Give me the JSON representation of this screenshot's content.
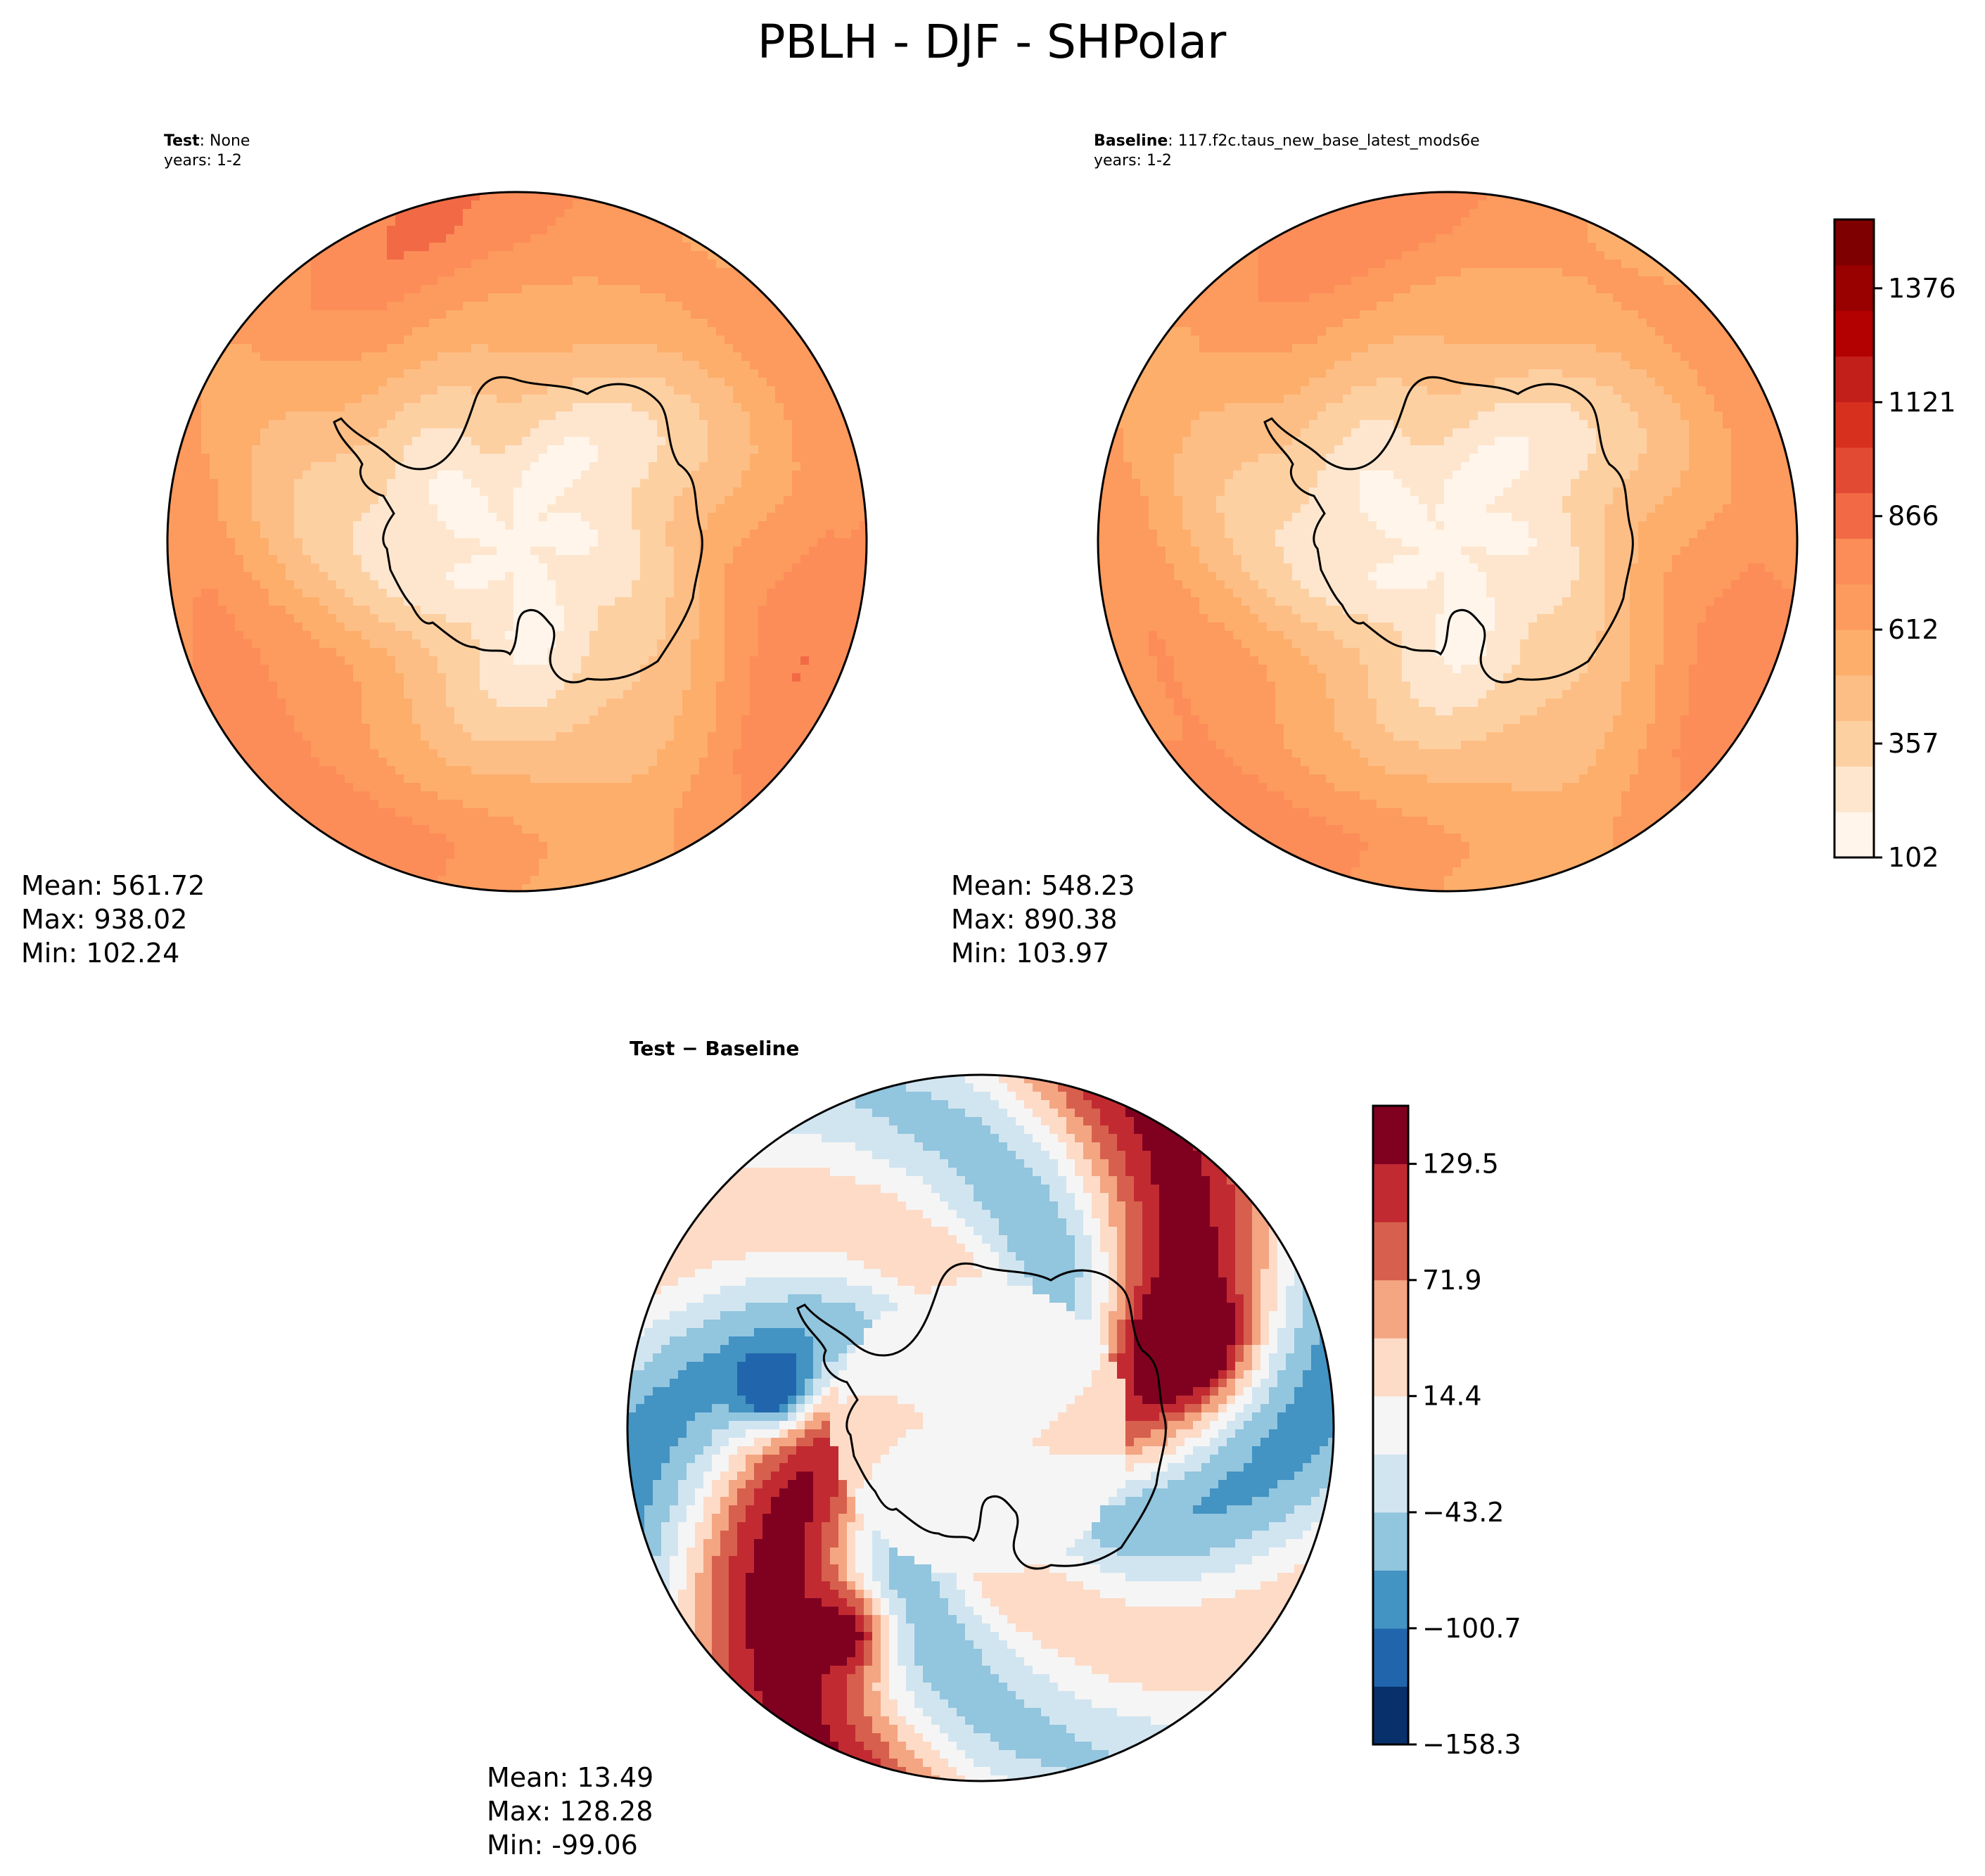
{
  "figure": {
    "title": "PBLH - DJF - SHPolar"
  },
  "chart_data": [
    {
      "type": "heatmap",
      "name": "test-map",
      "projection": "south-polar-stereographic",
      "label_bold": "Test",
      "label_rest": ": None",
      "years": "years: 1-2",
      "stats": {
        "mean": "Mean: 561.72",
        "max": "Max: 938.02",
        "min": "Min: 102.24"
      },
      "field": {
        "pole": 170,
        "coast": 320,
        "ocean_ring": 700,
        "ring_variation": 90,
        "max": 938.02,
        "min": 102.24
      },
      "colorbar": "shared",
      "cmap": "reds"
    },
    {
      "type": "heatmap",
      "name": "baseline-map",
      "projection": "south-polar-stereographic",
      "label_bold": "Baseline",
      "label_rest": ": 117.f2c.taus_new_base_latest_mods6e",
      "years": "years: 1-2",
      "stats": {
        "mean": "Mean: 548.23",
        "max": "Max: 890.38",
        "min": "Min: 103.97"
      },
      "field": {
        "pole": 165,
        "coast": 310,
        "ocean_ring": 680,
        "ring_variation": 80,
        "max": 890.38,
        "min": 103.97
      },
      "colorbar": {
        "ticks": [
          "102",
          "357",
          "612",
          "866",
          "1121",
          "1376"
        ],
        "range": [
          102,
          1530
        ],
        "levels": 14,
        "colors": [
          "#fff5eb",
          "#fee6ce",
          "#fdd0a2",
          "#fdbe85",
          "#fdae6b",
          "#fd9a5d",
          "#fc8d59",
          "#f26a45",
          "#e34a33",
          "#d7301f",
          "#c21f1a",
          "#b30000",
          "#990000",
          "#7f0000"
        ]
      },
      "cmap": "reds"
    },
    {
      "type": "heatmap",
      "name": "diff-map",
      "projection": "south-polar-stereographic",
      "label": "Test − Baseline",
      "stats": {
        "mean": "Mean: 13.49",
        "max": "Max: 128.28",
        "min": "Min: -99.06"
      },
      "field": {
        "mean": 13.49,
        "max": 128.28,
        "min": -99.06
      },
      "colorbar": {
        "ticks": [
          "129.5",
          "71.9",
          "14.4",
          "−43.2",
          "−100.7",
          "−158.3"
        ],
        "range": [
          -158.3,
          158.3
        ],
        "levels": 11,
        "colors": [
          "#08306b",
          "#2166ac",
          "#4393c3",
          "#92c5de",
          "#d1e5f0",
          "#f5f5f5",
          "#fddbc7",
          "#f4a582",
          "#d6604d",
          "#c22a32",
          "#800020"
        ]
      },
      "cmap": "rdbu"
    }
  ]
}
